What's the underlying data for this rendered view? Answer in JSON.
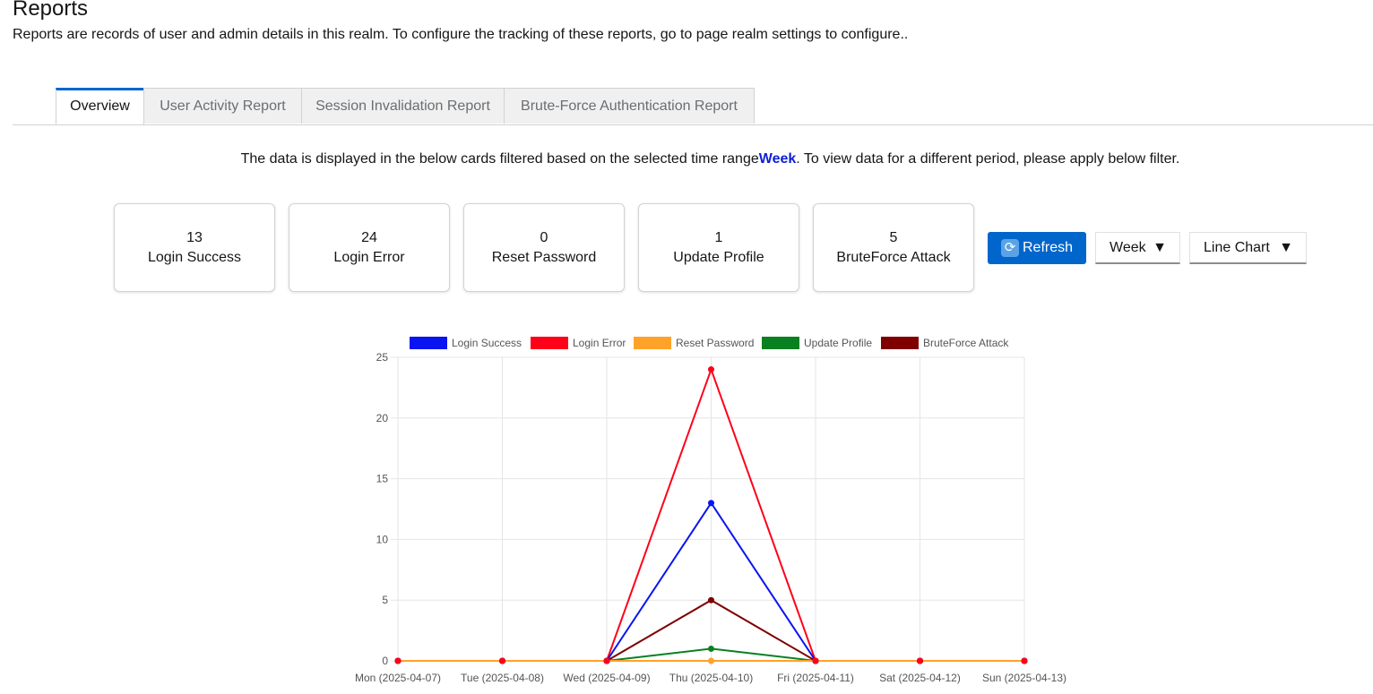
{
  "header": {
    "title": "Reports",
    "description": "Reports are records of user and admin details in this realm. To configure the tracking of these reports, go to page realm settings to configure.."
  },
  "tabs": [
    {
      "label": "Overview"
    },
    {
      "label": "User Activity Report"
    },
    {
      "label": "Session Invalidation Report"
    },
    {
      "label": "Brute-Force Authentication Report"
    }
  ],
  "info": {
    "before": "The data is displayed in the below cards filtered based on the selected time range",
    "highlight": "Week",
    "after": ". To view data for a different period, please apply below filter."
  },
  "cards": [
    {
      "value": "13",
      "label": "Login Success"
    },
    {
      "value": "24",
      "label": "Login Error"
    },
    {
      "value": "0",
      "label": "Reset Password"
    },
    {
      "value": "1",
      "label": "Update Profile"
    },
    {
      "value": "5",
      "label": "BruteForce Attack"
    }
  ],
  "controls": {
    "refresh_label": "Refresh",
    "range_value": "Week",
    "chart_type_value": "Line Chart",
    "caret": "▼",
    "refresh_icon": "refresh-icon",
    "accent_color": "#0066cc"
  },
  "chart_data": {
    "type": "line",
    "categories": [
      "Mon (2025-04-07)",
      "Tue (2025-04-08)",
      "Wed (2025-04-09)",
      "Thu (2025-04-10)",
      "Fri (2025-04-11)",
      "Sat (2025-04-12)",
      "Sun (2025-04-13)"
    ],
    "ylim": [
      0,
      25
    ],
    "yticks": [
      0,
      5,
      10,
      15,
      20,
      25
    ],
    "grid": true,
    "legend_position": "top",
    "series": [
      {
        "name": "Login Error",
        "color": "#ff0019",
        "values": [
          0,
          0,
          0,
          24,
          0,
          0,
          0
        ]
      },
      {
        "name": "Login Success",
        "color": "#0a14f0",
        "values": [
          0,
          0,
          0,
          13,
          0,
          0,
          0
        ]
      },
      {
        "name": "BruteForce Attack",
        "color": "#800000",
        "values": [
          0,
          0,
          0,
          5,
          0,
          0,
          0
        ]
      },
      {
        "name": "Update Profile",
        "color": "#0a8020",
        "values": [
          0,
          0,
          0,
          1,
          0,
          0,
          0
        ]
      },
      {
        "name": "Reset Password",
        "color": "#ffa22a",
        "values": [
          0,
          0,
          0,
          0,
          0,
          0,
          0
        ]
      }
    ],
    "legend_order": [
      "Login Success",
      "Login Error",
      "Reset Password",
      "Update Profile",
      "BruteForce Attack"
    ]
  }
}
